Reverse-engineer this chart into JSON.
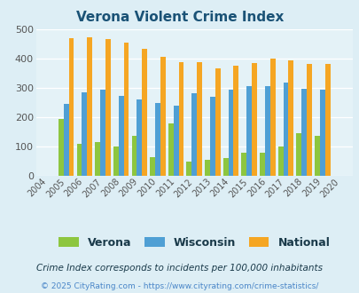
{
  "title": "Verona Violent Crime Index",
  "years": [
    2004,
    2005,
    2006,
    2007,
    2008,
    2009,
    2010,
    2011,
    2012,
    2013,
    2014,
    2015,
    2016,
    2017,
    2018,
    2019,
    2020
  ],
  "verona": [
    0,
    195,
    110,
    115,
    100,
    135,
    65,
    180,
    50,
    55,
    62,
    78,
    80,
    100,
    145,
    135,
    0
  ],
  "wisconsin": [
    0,
    245,
    285,
    293,
    273,
    260,
    250,
    240,
    282,
    270,
    293,
    306,
    306,
    318,
    298,
    294,
    0
  ],
  "national": [
    0,
    470,
    474,
    467,
    455,
    432,
    405,
    388,
    388,
    368,
    377,
    384,
    399,
    394,
    381,
    381,
    0
  ],
  "verona_color": "#8dc63f",
  "wisconsin_color": "#4f9fd4",
  "national_color": "#f5a623",
  "bg_color": "#ddeef5",
  "plot_bg_color": "#e4f2f7",
  "ylim": [
    0,
    500
  ],
  "yticks": [
    0,
    100,
    200,
    300,
    400,
    500
  ],
  "legend_labels": [
    "Verona",
    "Wisconsin",
    "National"
  ],
  "footnote1": "Crime Index corresponds to incidents per 100,000 inhabitants",
  "footnote2": "© 2025 CityRating.com - https://www.cityrating.com/crime-statistics/",
  "title_color": "#1a5276",
  "footnote1_color": "#1a3a4a",
  "footnote2_color": "#4a86c8"
}
